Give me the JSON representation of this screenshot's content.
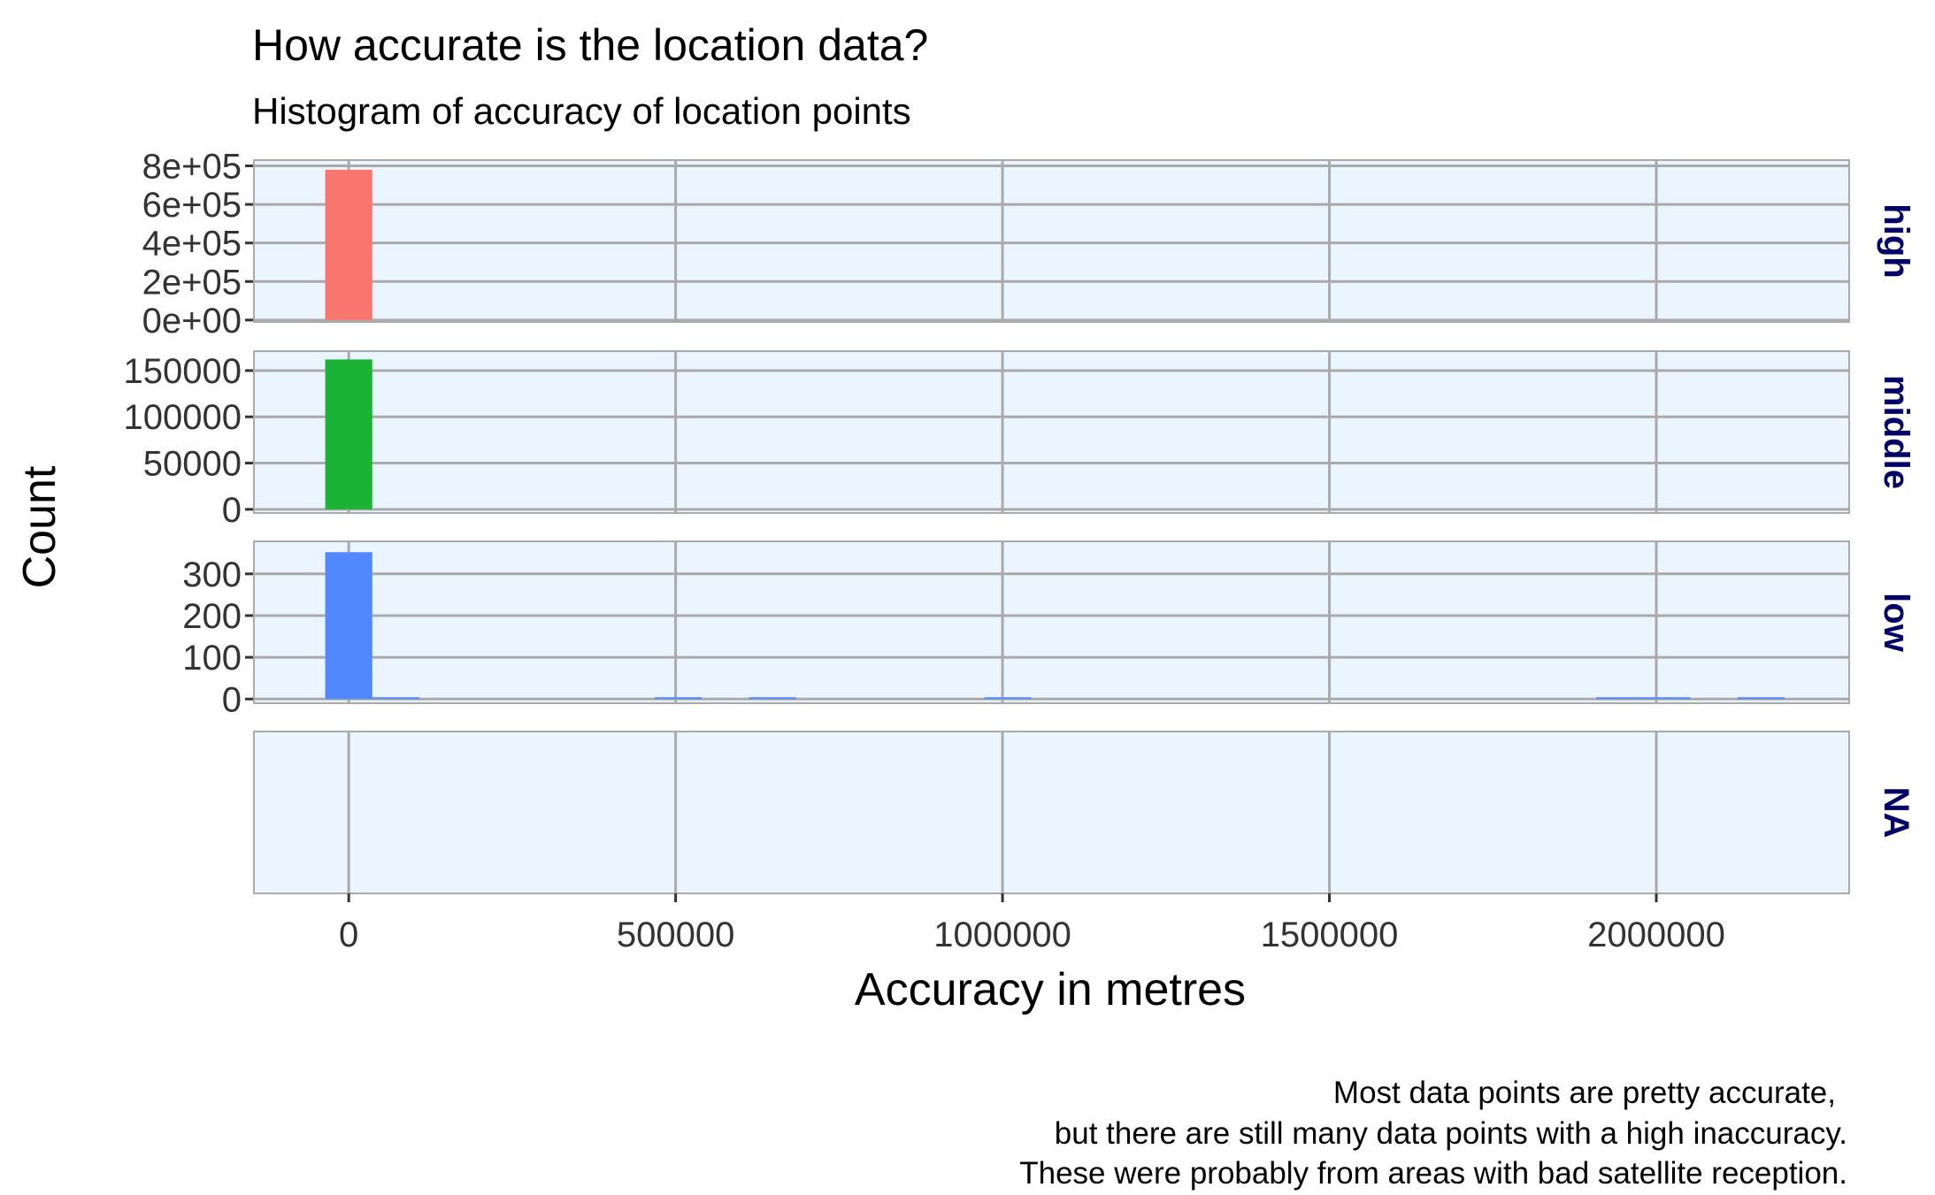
{
  "chart_data": {
    "type": "bar",
    "title": "How accurate is the location data?",
    "subtitle": "Histogram of accuracy of location points",
    "xlabel": "Accuracy in metres",
    "ylabel": "Count",
    "caption": [
      "Most data points are pretty accurate,",
      "but there are still many data points with a high inaccuracy.",
      "These were probably from areas with bad satellite reception."
    ],
    "xlim": [
      -145000,
      2295000
    ],
    "x_ticks": [
      0,
      500000,
      1000000,
      1500000,
      2000000
    ],
    "x_tick_labels": [
      "0",
      "500000",
      "1000000",
      "1500000",
      "2000000"
    ],
    "bin_width": 72000,
    "facet_position": "right",
    "grid": true,
    "panels": [
      {
        "label": "high",
        "color": "#F8766D",
        "ylim": [
          -10000,
          830000
        ],
        "y_ticks": [
          0,
          200000,
          400000,
          600000,
          800000
        ],
        "y_tick_labels": [
          "0e+00",
          "2e+05",
          "4e+05",
          "6e+05",
          "8e+05"
        ],
        "bins": [
          {
            "x": 0,
            "count": 780000
          }
        ]
      },
      {
        "label": "middle",
        "color": "#1BB333",
        "ylim": [
          -4000,
          171000
        ],
        "y_ticks": [
          0,
          50000,
          100000,
          150000
        ],
        "y_tick_labels": [
          "0",
          "50000",
          "100000",
          "150000"
        ],
        "bins": [
          {
            "x": 0,
            "count": 162000
          }
        ]
      },
      {
        "label": "low",
        "color": "#5187FF",
        "ylim": [
          -10,
          378
        ],
        "y_ticks": [
          0,
          100,
          200,
          300
        ],
        "y_tick_labels": [
          "0",
          "100",
          "200",
          "300"
        ],
        "bins": [
          {
            "x": 0,
            "count": 352
          },
          {
            "x": 72000,
            "count": 1
          },
          {
            "x": 504000,
            "count": 1
          },
          {
            "x": 648000,
            "count": 1
          },
          {
            "x": 1008000,
            "count": 1
          },
          {
            "x": 1944000,
            "count": 1
          },
          {
            "x": 2016000,
            "count": 1
          },
          {
            "x": 2160000,
            "count": 1
          }
        ]
      },
      {
        "label": "NA",
        "color": "#888888",
        "ylim": [
          0,
          1
        ],
        "y_ticks": [],
        "y_tick_labels": [],
        "bins": []
      }
    ]
  }
}
